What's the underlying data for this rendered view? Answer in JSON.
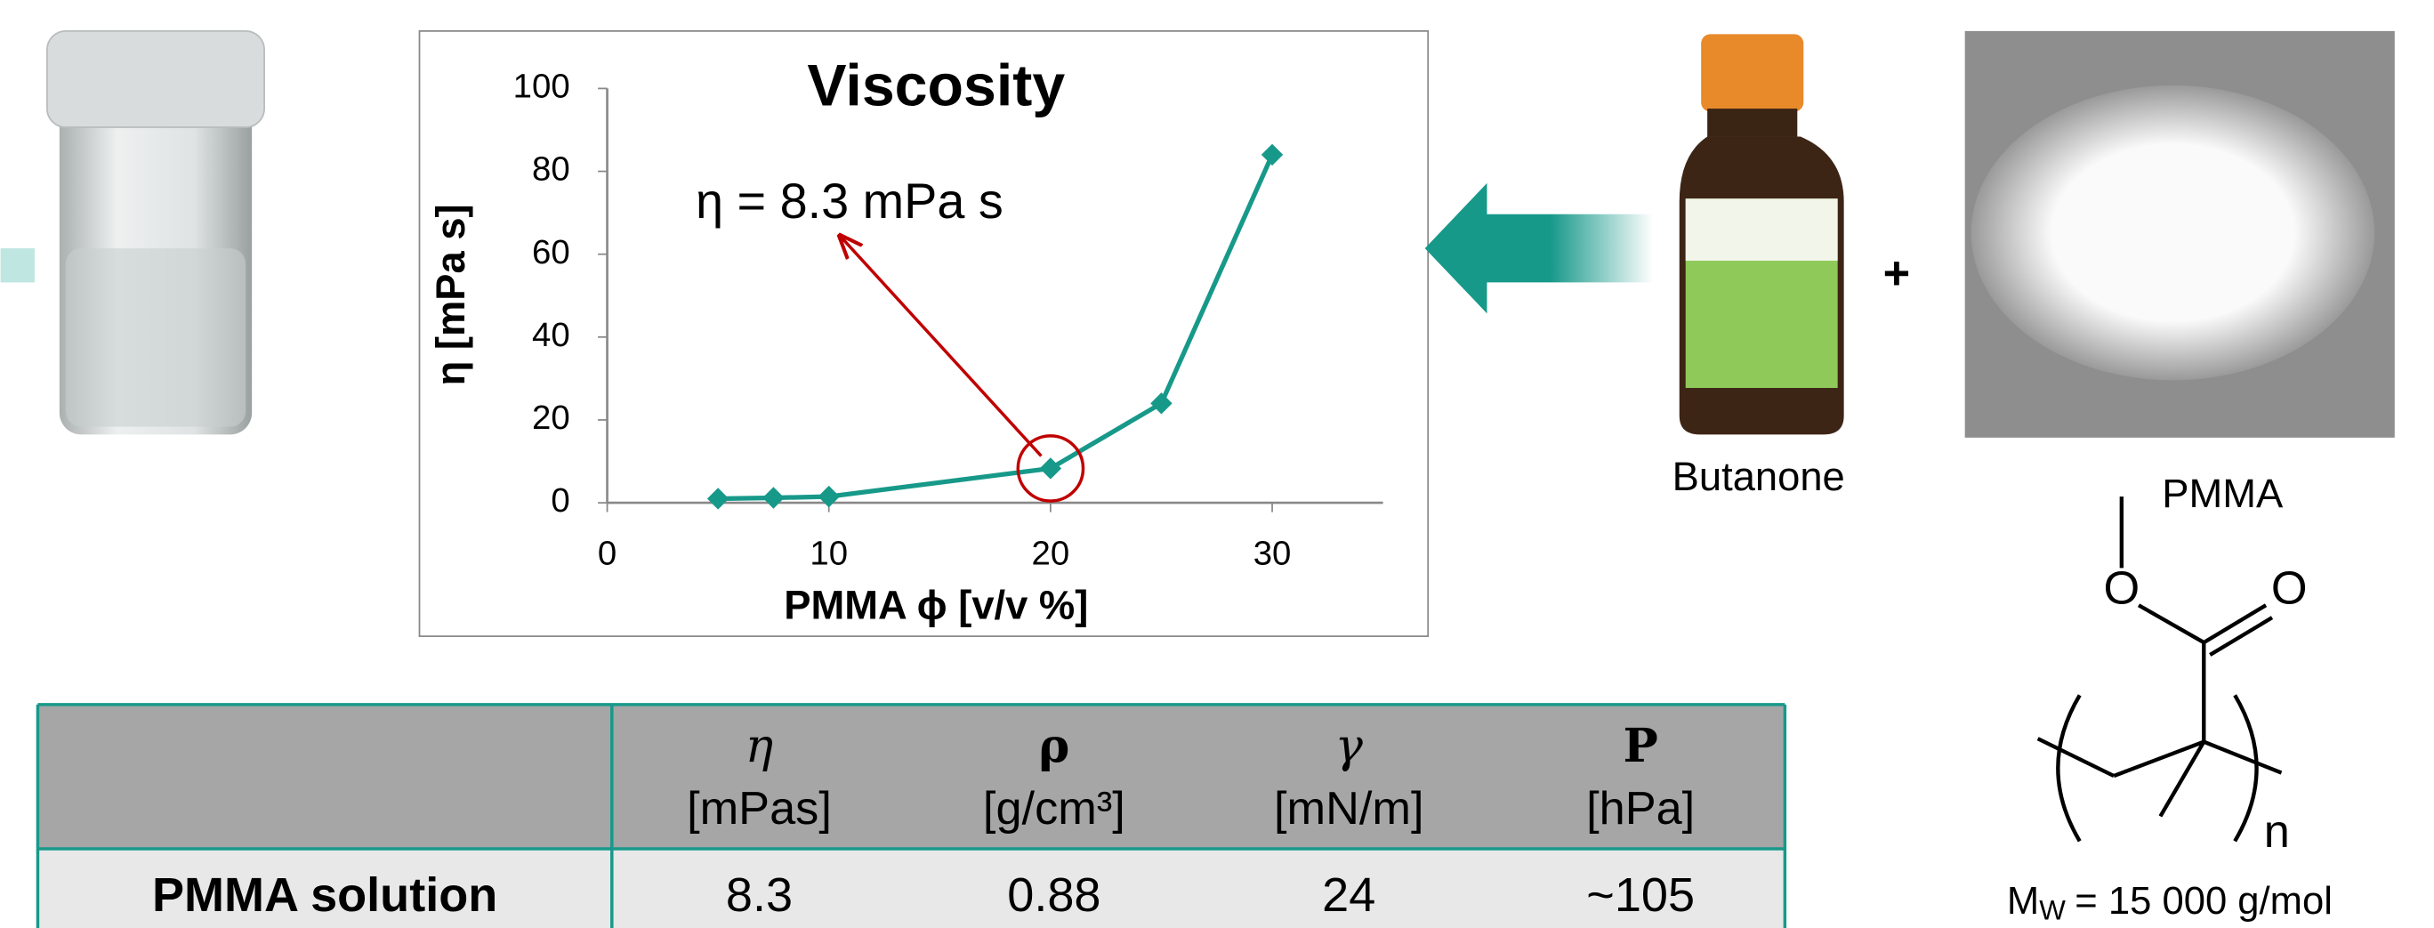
{
  "chart_data": {
    "type": "line",
    "title": "Viscosity",
    "x_label": "PMMA ϕ [v/v %]",
    "y_label": "η [mPa s]",
    "annotation": "η = 8.3 mPa s",
    "x": [
      5,
      7.5,
      10,
      20,
      25,
      30
    ],
    "series": [
      {
        "color": "#17998a",
        "values": [
          1,
          1.2,
          1.5,
          8.3,
          24,
          84
        ]
      }
    ],
    "xlim": [
      0,
      35
    ],
    "xticks": [
      0,
      10,
      20,
      30
    ],
    "ylim": [
      0,
      100
    ],
    "yticks": [
      0,
      20,
      40,
      60,
      80,
      100
    ],
    "grid": false
  },
  "labels": {
    "solvent": "Butanone",
    "plus": "+",
    "polymer": "PMMA"
  },
  "structure": {
    "oxygen_1": "O",
    "oxygen_2": "O",
    "repeat": "n"
  },
  "molecular_weight": {
    "symbol": "M",
    "subscript": "W",
    "text": "= 15 000 g/mol"
  },
  "table": {
    "columns": [
      {
        "symbol": "η",
        "unit": "[mPas]"
      },
      {
        "symbol": "ρ",
        "unit": "[g/cm³]"
      },
      {
        "symbol": "γ",
        "unit": "[mN/m]"
      },
      {
        "symbol": "P",
        "unit": "[hPa]"
      }
    ],
    "rows": [
      [
        "PMMA solution",
        "8.3",
        "0.88",
        "24",
        "~105"
      ]
    ]
  }
}
